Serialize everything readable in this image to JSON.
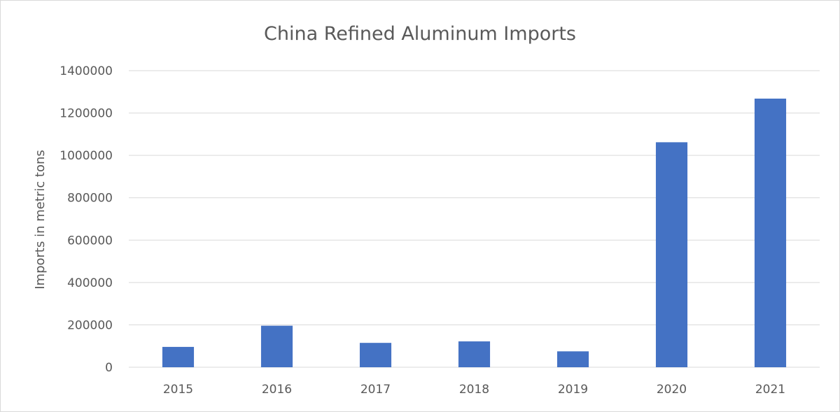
{
  "chart_data": {
    "type": "bar",
    "title": "China Refined Aluminum Imports",
    "xlabel": "",
    "ylabel": "Imports in metric tons",
    "categories": [
      "2015",
      "2016",
      "2017",
      "2018",
      "2019",
      "2020",
      "2021"
    ],
    "values": [
      96000,
      196000,
      115000,
      122000,
      75000,
      1062000,
      1268000
    ],
    "ylim": [
      0,
      1400000
    ],
    "yticks": [
      "0",
      "200000",
      "400000",
      "600000",
      "800000",
      "1000000",
      "1200000",
      "1400000"
    ],
    "grid": true,
    "legend": "none",
    "colors": {
      "bar": "#4472C4",
      "gridline": "#d9d9d9",
      "text": "#595959"
    }
  }
}
